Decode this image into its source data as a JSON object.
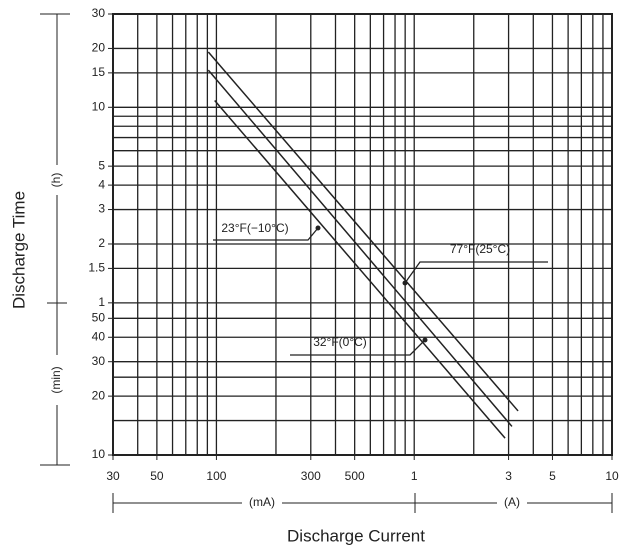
{
  "chart_data": {
    "type": "line",
    "y_label": "Discharge Time",
    "y_unit_upper": "(h)",
    "y_unit_lower": "(min)",
    "x_label": "Discharge Current",
    "x_unit_left": "(mA)",
    "x_unit_right": "(A)",
    "log_x": true,
    "log_y": true,
    "grid": true,
    "color": "#222",
    "xlim": [
      30,
      10000
    ],
    "xticks": [
      30,
      50,
      100,
      300,
      500,
      {
        "value": 1000,
        "label": "1"
      },
      {
        "value": 3000,
        "label": "3"
      },
      {
        "value": 5000,
        "label": "5"
      },
      {
        "value": 10000,
        "label": "10"
      }
    ],
    "xgrid": [
      30,
      40,
      50,
      60,
      70,
      80,
      90,
      100,
      200,
      300,
      400,
      500,
      600,
      700,
      800,
      900,
      1000,
      2000,
      3000,
      4000,
      5000,
      6000,
      7000,
      8000,
      9000,
      10000
    ],
    "ylim": [
      10,
      1800
    ],
    "yticks": [
      {
        "value": 1800,
        "label": "30"
      },
      {
        "value": 1200,
        "label": "20"
      },
      {
        "value": 900,
        "label": "15"
      },
      {
        "value": 600,
        "label": "10"
      },
      {
        "value": 300,
        "label": "5"
      },
      {
        "value": 240,
        "label": "4"
      },
      {
        "value": 180,
        "label": "3"
      },
      {
        "value": 120,
        "label": "2"
      },
      {
        "value": 90,
        "label": "1.5"
      },
      {
        "value": 60,
        "label": "1"
      },
      50,
      40,
      30,
      20,
      10
    ],
    "ygrid": [
      10,
      15,
      20,
      25,
      30,
      40,
      50,
      60,
      90,
      120,
      180,
      240,
      300,
      360,
      420,
      480,
      540,
      600,
      900,
      1200,
      1800
    ],
    "series": [
      {
        "name": "77°F(25°C)",
        "x": [
          91,
          3350
        ],
        "values": [
          1150,
          16.8
        ]
      },
      {
        "name": "32°F(0°C)",
        "x": [
          91,
          3120
        ],
        "values": [
          930,
          14
        ]
      },
      {
        "name": "23°F(−10°C)",
        "x": [
          98,
          2880
        ],
        "values": [
          650,
          12.2
        ]
      }
    ]
  }
}
